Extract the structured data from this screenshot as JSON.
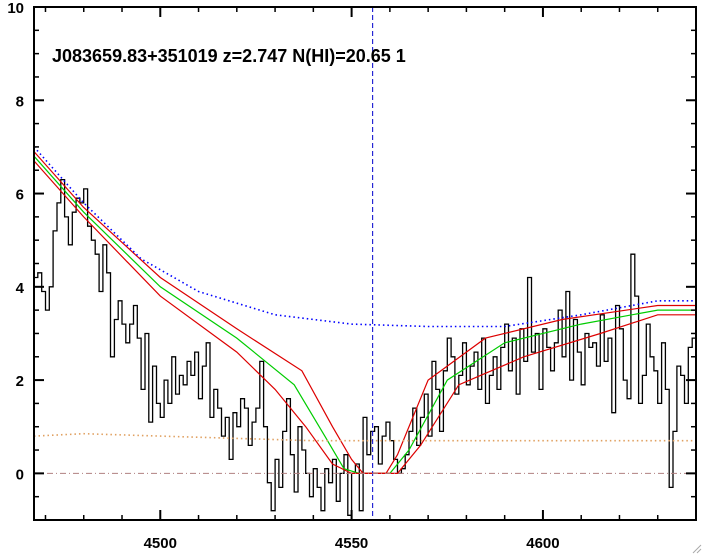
{
  "chart_data": {
    "type": "line",
    "title": "J083659.83+351019 z=2.747 N(HI)=20.65 1",
    "xlabel": "",
    "ylabel": "",
    "xlim": [
      4467,
      4640
    ],
    "ylim": [
      -1,
      10
    ],
    "x_ticks": [
      4500,
      4550,
      4600
    ],
    "y_ticks": [
      0,
      2,
      4,
      6,
      8,
      10
    ],
    "grid": false,
    "marker_line": {
      "x": 4555.5,
      "color": "#0000cc",
      "style": "dashed"
    },
    "zero_line": {
      "y": 0,
      "color": "#b08080",
      "style": "dash-dot"
    },
    "series": [
      {
        "key": "flux",
        "color": "#000000",
        "style": "steps",
        "x": [
          4467,
          4468,
          4469,
          4470,
          4471,
          4472,
          4473,
          4474,
          4475,
          4476,
          4477,
          4478,
          4479,
          4480,
          4481,
          4482,
          4483,
          4484,
          4485,
          4486,
          4487,
          4488,
          4489,
          4490,
          4491,
          4492,
          4493,
          4494,
          4495,
          4496,
          4497,
          4498,
          4499,
          4500,
          4501,
          4502,
          4503,
          4504,
          4505,
          4506,
          4507,
          4508,
          4509,
          4510,
          4511,
          4512,
          4513,
          4514,
          4515,
          4516,
          4517,
          4518,
          4519,
          4520,
          4521,
          4522,
          4523,
          4524,
          4525,
          4526,
          4527,
          4528,
          4529,
          4530,
          4531,
          4532,
          4533,
          4534,
          4535,
          4536,
          4537,
          4538,
          4539,
          4540,
          4541,
          4542,
          4543,
          4544,
          4545,
          4546,
          4547,
          4548,
          4549,
          4550,
          4551,
          4552,
          4553,
          4554,
          4555,
          4556,
          4557,
          4558,
          4559,
          4560,
          4561,
          4562,
          4563,
          4564,
          4565,
          4566,
          4567,
          4568,
          4569,
          4570,
          4571,
          4572,
          4573,
          4574,
          4575,
          4576,
          4577,
          4578,
          4579,
          4580,
          4581,
          4582,
          4583,
          4584,
          4585,
          4586,
          4587,
          4588,
          4589,
          4590,
          4591,
          4592,
          4593,
          4594,
          4595,
          4596,
          4597,
          4598,
          4599,
          4600,
          4601,
          4602,
          4603,
          4604,
          4605,
          4606,
          4607,
          4608,
          4609,
          4610,
          4611,
          4612,
          4613,
          4614,
          4615,
          4616,
          4617,
          4618,
          4619,
          4620,
          4621,
          4622,
          4623,
          4624,
          4625,
          4626,
          4627,
          4628,
          4629,
          4630,
          4631,
          4632,
          4633,
          4634,
          4635,
          4636,
          4637,
          4638,
          4639
        ],
        "values": [
          4.2,
          4.3,
          3.9,
          3.5,
          4.0,
          5.2,
          5.8,
          6.3,
          5.5,
          4.9,
          5.6,
          5.9,
          5.8,
          6.1,
          5.3,
          5.0,
          4.7,
          3.9,
          4.9,
          4.3,
          2.5,
          3.3,
          3.7,
          3.2,
          2.8,
          3.2,
          3.6,
          2.9,
          1.8,
          3.0,
          1.1,
          2.3,
          1.5,
          1.2,
          2.0,
          1.5,
          2.5,
          1.7,
          2.1,
          1.9,
          2.4,
          2.1,
          2.6,
          1.6,
          2.3,
          2.8,
          1.2,
          1.8,
          1.4,
          0.8,
          1.2,
          0.3,
          1.3,
          1.0,
          1.6,
          1.4,
          0.6,
          1.1,
          1.4,
          2.4,
          1.0,
          -0.2,
          -0.8,
          0.3,
          -0.3,
          0.9,
          1.6,
          0.4,
          -0.4,
          1.0,
          0.5,
          0.0,
          -0.5,
          0.1,
          -0.3,
          -0.8,
          0.1,
          -0.2,
          0.3,
          -0.6,
          0.0,
          0.4,
          -0.9,
          0.0,
          0.2,
          -0.8,
          1.2,
          0.4,
          0.9,
          1.0,
          0.2,
          0.8,
          1.1,
          0.7,
          0.3,
          0.0,
          0.1,
          0.4,
          0.9,
          1.4,
          0.6,
          1.2,
          1.7,
          0.8,
          2.4,
          1.8,
          0.9,
          2.2,
          2.9,
          2.5,
          1.7,
          2.1,
          2.8,
          1.9,
          2.3,
          2.6,
          1.8,
          2.9,
          1.5,
          2.1,
          2.5,
          1.8,
          2.7,
          3.2,
          2.2,
          2.9,
          1.7,
          3.1,
          2.4,
          4.2,
          2.6,
          3.0,
          1.8,
          3.1,
          2.7,
          2.2,
          2.8,
          3.5,
          2.5,
          3.9,
          2.0,
          3.3,
          2.6,
          1.9,
          3.0,
          2.7,
          2.8,
          2.3,
          3.4,
          2.4,
          2.9,
          1.3,
          3.6,
          3.1,
          2.0,
          1.6,
          4.7,
          3.8,
          1.5,
          2.1,
          3.2,
          2.5,
          2.2,
          1.5,
          2.8,
          1.8,
          -0.3,
          0.9,
          2.3,
          2.1,
          1.5,
          2.7,
          2.9
        ]
      },
      {
        "key": "fit",
        "color": "#00cc00",
        "style": "line",
        "x": [
          4467,
          4480,
          4500,
          4520,
          4535,
          4543,
          4548,
          4552,
          4556,
          4560,
          4565,
          4575,
          4590,
          4610,
          4630,
          4640
        ],
        "values": [
          6.8,
          5.6,
          4.0,
          2.9,
          1.9,
          0.8,
          0.1,
          0.0,
          0.0,
          0.0,
          0.5,
          2.0,
          2.8,
          3.2,
          3.5,
          3.5
        ]
      },
      {
        "key": "fit_upper",
        "color": "#dd0000",
        "style": "line",
        "x": [
          4467,
          4480,
          4500,
          4520,
          4537,
          4545,
          4550,
          4553,
          4556,
          4559,
          4562,
          4570,
          4585,
          4605,
          4630,
          4640
        ],
        "values": [
          6.9,
          5.7,
          4.2,
          3.1,
          2.2,
          1.0,
          0.3,
          0.0,
          0.0,
          0.0,
          0.4,
          2.0,
          2.9,
          3.3,
          3.6,
          3.6
        ]
      },
      {
        "key": "fit_lower",
        "color": "#dd0000",
        "style": "line",
        "x": [
          4467,
          4480,
          4500,
          4520,
          4530,
          4538,
          4545,
          4550,
          4556,
          4562,
          4568,
          4578,
          4595,
          4615,
          4630,
          4640
        ],
        "values": [
          6.7,
          5.5,
          3.8,
          2.6,
          1.8,
          1.0,
          0.2,
          0.0,
          0.0,
          0.0,
          0.6,
          1.9,
          2.5,
          3.0,
          3.4,
          3.4
        ]
      },
      {
        "key": "continuum",
        "color": "#0000ff",
        "style": "dotted",
        "x": [
          4467,
          4480,
          4495,
          4510,
          4530,
          4550,
          4570,
          4590,
          4610,
          4630,
          4640
        ],
        "values": [
          7.0,
          5.8,
          4.6,
          3.9,
          3.4,
          3.2,
          3.15,
          3.15,
          3.4,
          3.7,
          3.7
        ]
      },
      {
        "key": "error",
        "color": "#e0a060",
        "style": "dotted",
        "x": [
          4467,
          4480,
          4500,
          4520,
          4540,
          4560,
          4580,
          4600,
          4620,
          4640
        ],
        "values": [
          0.8,
          0.85,
          0.8,
          0.75,
          0.7,
          0.7,
          0.7,
          0.7,
          0.7,
          0.7
        ]
      }
    ]
  }
}
